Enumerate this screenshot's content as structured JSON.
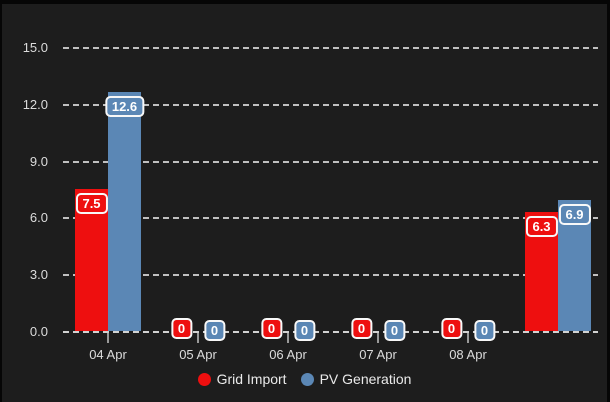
{
  "chart_data": {
    "type": "bar",
    "categories": [
      "04 Apr",
      "05 Apr",
      "06 Apr",
      "07 Apr",
      "08 Apr",
      ""
    ],
    "series": [
      {
        "name": "Grid Import",
        "color": "#ee0f0f",
        "values": [
          7.5,
          0,
          0,
          0,
          0,
          6.3
        ],
        "labels": [
          "7.5",
          "0",
          "0",
          "0",
          "0",
          "6.3"
        ]
      },
      {
        "name": "PV Generation",
        "color": "#5b87b5",
        "values": [
          12.6,
          0,
          0,
          0,
          0,
          6.9
        ],
        "labels": [
          "12.6",
          "0",
          "0",
          "0",
          "0",
          "6.9"
        ]
      }
    ],
    "y_ticks": [
      {
        "label": "15.0",
        "value": 15
      },
      {
        "label": "12.0",
        "value": 12
      },
      {
        "label": "9.0",
        "value": 9
      },
      {
        "label": "6.0",
        "value": 6
      },
      {
        "label": "3.0",
        "value": 3
      },
      {
        "label": "0.0",
        "value": 0
      }
    ],
    "ylim": [
      0,
      15
    ],
    "grid": "horizontal-dashed",
    "legend_position": "bottom",
    "background": "#1d1d1d",
    "grid_color": "#cecece",
    "text_color": "#dcdcdc",
    "badge_border_color": "#f8f8f8"
  },
  "legend": {
    "items": [
      {
        "label": "Grid Import"
      },
      {
        "label": "PV Generation"
      }
    ]
  }
}
